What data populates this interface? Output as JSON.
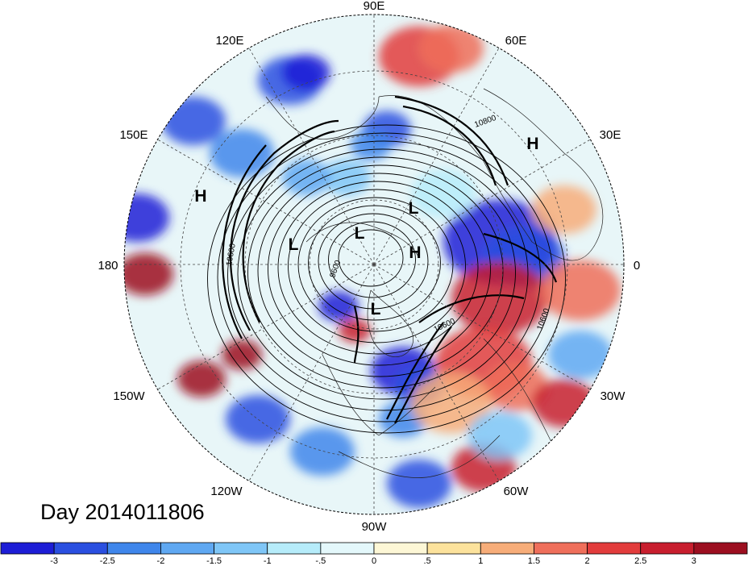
{
  "title": "Day 2014011806",
  "longitude_labels": [
    "90E",
    "60E",
    "30E",
    "0",
    "30W",
    "60W",
    "90W",
    "120W",
    "150W",
    "180",
    "150E",
    "120E"
  ],
  "pressure_centers": [
    {
      "type": "H",
      "lon_label": "~20E"
    },
    {
      "type": "H",
      "lon_label": "~160E"
    },
    {
      "type": "L"
    },
    {
      "type": "L"
    },
    {
      "type": "L"
    },
    {
      "type": "H"
    },
    {
      "type": "L"
    }
  ],
  "contour_labels": [
    "10800",
    "10600",
    "10600",
    "9600",
    "10600"
  ],
  "colorbar": {
    "ticks": [
      "-3",
      "-2.5",
      "-2",
      "-1.5",
      "-1",
      "-.5",
      "0",
      ".5",
      "1",
      "1.5",
      "2",
      "2.5",
      "3"
    ],
    "colors": [
      "#1d1dd6",
      "#2a4fe0",
      "#3f86eb",
      "#5fa8f2",
      "#7fc6f7",
      "#b6ecfa",
      "#e4f8fb",
      "#fdf7d6",
      "#fce29c",
      "#f7ad79",
      "#ef6f5b",
      "#e23c3c",
      "#c81e2e",
      "#9c0f20"
    ]
  }
}
